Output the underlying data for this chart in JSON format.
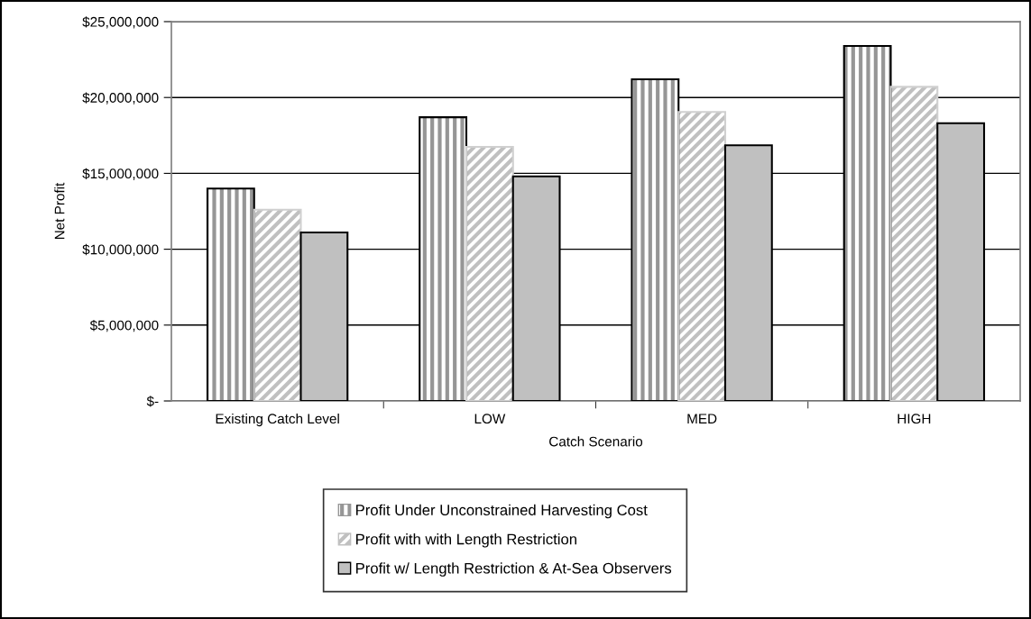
{
  "chart_data": {
    "type": "bar",
    "xlabel": "Catch Scenario",
    "ylabel": "Net Profit",
    "categories": [
      "Existing Catch Level",
      "LOW",
      "MED",
      "HIGH"
    ],
    "series": [
      {
        "name": "Profit Under Unconstrained Harvesting Cost",
        "color": "#969696",
        "values": [
          14000000,
          18700000,
          21200000,
          23400000
        ]
      },
      {
        "name": "Profit with with Length Restriction",
        "color": "#c0c0c0",
        "values": [
          12600000,
          16750000,
          19050000,
          20700000
        ]
      },
      {
        "name": "Profit w/ Length Restriction & At-Sea Observers",
        "color": "#c0c0c0",
        "values": [
          11100000,
          14800000,
          16850000,
          18300000
        ]
      }
    ],
    "ylim": [
      0,
      25000000
    ],
    "yticks": [
      {
        "value": 0,
        "label": "$-"
      },
      {
        "value": 5000000,
        "label": "$5,000,000"
      },
      {
        "value": 10000000,
        "label": "$10,000,000"
      },
      {
        "value": 15000000,
        "label": "$15,000,000"
      },
      {
        "value": 20000000,
        "label": "$20,000,000"
      },
      {
        "value": 25000000,
        "label": "$25,000,000"
      }
    ],
    "grid": "y",
    "legend": "bottom"
  }
}
